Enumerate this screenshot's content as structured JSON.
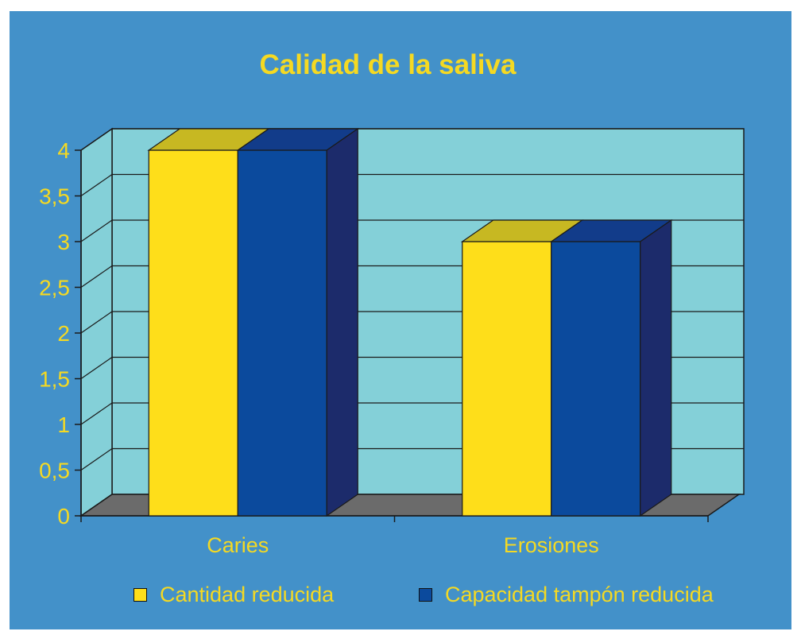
{
  "colors": {
    "background": "#4391c9",
    "plot_wall": "#84d0d8",
    "floor": "#6b6b6b",
    "text": "#f5d922",
    "axis": "#1a1a1a"
  },
  "chart_data": {
    "type": "bar",
    "title": "Calidad de la saliva",
    "categories": [
      "Caries",
      "Erosiones"
    ],
    "series": [
      {
        "name": "Cantidad reducida",
        "values": [
          4,
          3
        ],
        "color": "#fede1a",
        "top_color": "#c7b822"
      },
      {
        "name": "Capacidad tampón reducida",
        "values": [
          4,
          3
        ],
        "color": "#0b4a9d",
        "top_color": "#123c8a"
      }
    ],
    "ylim": [
      0,
      4
    ],
    "yticks": [
      "0",
      "0,5",
      "1",
      "1,5",
      "2",
      "2,5",
      "3",
      "3,5",
      "4"
    ],
    "grid": true,
    "legend": "bottom"
  }
}
